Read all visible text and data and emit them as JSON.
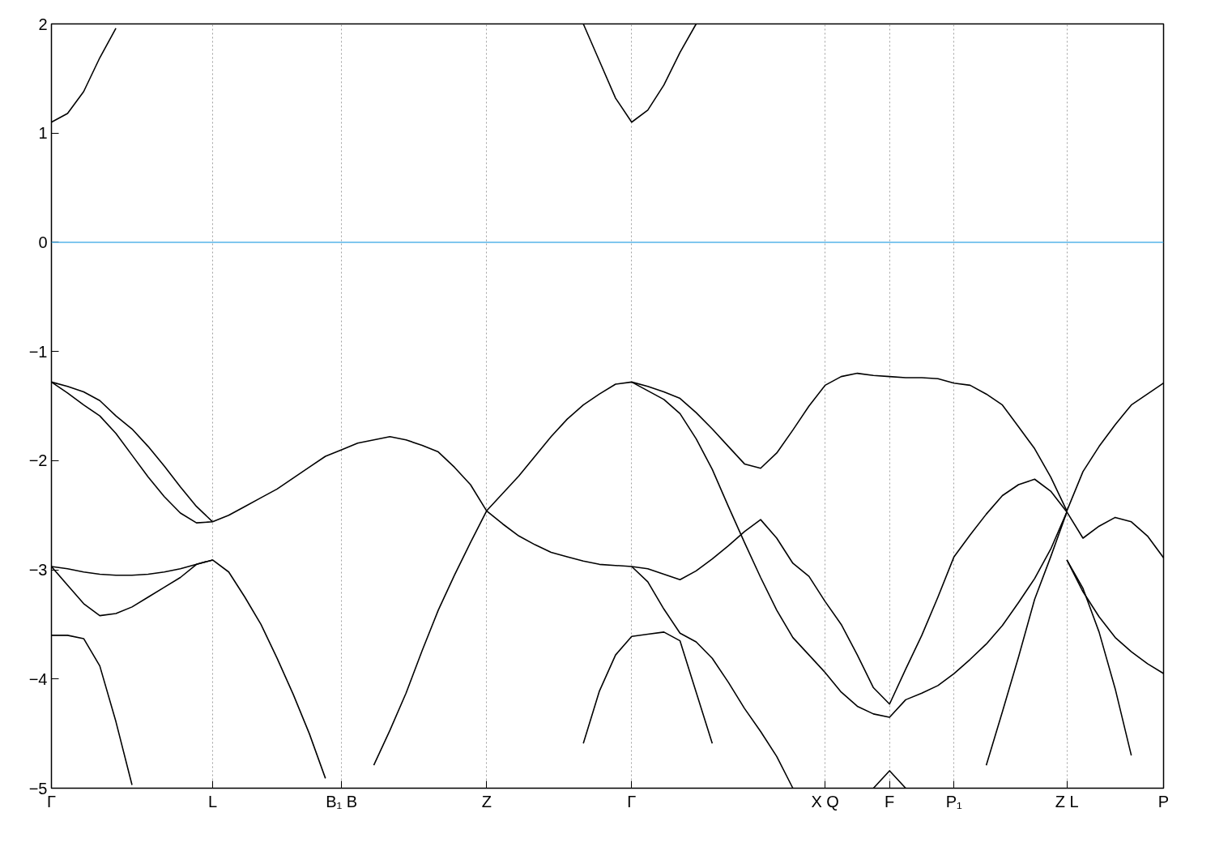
{
  "chart_data": {
    "type": "line",
    "categories": [
      "Γ",
      null,
      null,
      null,
      null,
      null,
      null,
      null,
      null,
      null,
      "L",
      null,
      null,
      null,
      null,
      null,
      null,
      null,
      "B₁ B",
      null,
      null,
      null,
      null,
      null,
      null,
      null,
      null,
      "Z",
      null,
      null,
      null,
      null,
      null,
      null,
      null,
      null,
      "Γ",
      null,
      null,
      null,
      null,
      null,
      null,
      null,
      null,
      null,
      null,
      null,
      "X Q",
      null,
      null,
      null,
      "F",
      null,
      null,
      null,
      "P₁",
      null,
      null,
      null,
      null,
      null,
      null,
      "Z L",
      null,
      null,
      null,
      null,
      null,
      "P"
    ],
    "ylim": [
      -5,
      2
    ],
    "yticks": [
      -5,
      -4,
      -3,
      -2,
      -1,
      0,
      1,
      2
    ],
    "grid": "x",
    "ref_lines": [
      {
        "axis": "y",
        "value": 0,
        "color": "#56b4e9"
      }
    ],
    "series": [
      {
        "color": "#000000",
        "values": [
          1.1,
          1.18,
          1.38,
          1.69,
          1.96,
          null,
          null,
          null,
          null,
          null,
          null,
          null,
          null,
          null,
          null,
          null,
          null,
          null,
          null,
          null,
          null,
          null,
          null,
          null,
          null,
          null,
          null,
          null,
          null,
          null,
          null,
          null,
          null,
          null,
          null,
          null,
          null,
          null,
          null,
          null,
          null,
          null,
          null,
          null,
          null,
          null,
          null,
          null,
          null,
          null,
          null,
          null,
          null,
          null,
          null,
          null,
          null,
          null,
          null,
          null,
          null,
          null,
          null,
          null,
          null,
          null,
          null,
          null,
          null,
          null
        ]
      },
      {
        "color": "#000000",
        "values": [
          null,
          null,
          null,
          null,
          null,
          null,
          null,
          null,
          null,
          null,
          null,
          null,
          null,
          null,
          null,
          null,
          null,
          null,
          null,
          null,
          null,
          null,
          null,
          null,
          null,
          null,
          null,
          null,
          null,
          null,
          null,
          null,
          null,
          2.0,
          1.66,
          1.32,
          1.1,
          1.21,
          1.44,
          1.74,
          2.0,
          null,
          null,
          null,
          null,
          null,
          null,
          null,
          null,
          null,
          null,
          null,
          null,
          null,
          null,
          null,
          null,
          null,
          null,
          null,
          null,
          null,
          null,
          null,
          null,
          null,
          null,
          null,
          null,
          null
        ]
      },
      {
        "color": "#000000",
        "values": [
          -1.28,
          -1.38,
          -1.49,
          -1.59,
          -1.75,
          -1.95,
          -2.15,
          -2.33,
          -2.48,
          -2.57,
          -2.56,
          -2.5,
          -2.42,
          -2.34,
          -2.26,
          -2.16,
          -2.06,
          -1.96,
          -1.9,
          -1.84,
          -1.81,
          -1.78,
          -1.81,
          -1.86,
          -1.92,
          -2.06,
          -2.22,
          -2.46,
          -2.3,
          -2.14,
          -1.96,
          -1.78,
          -1.62,
          -1.49,
          -1.39,
          -1.3,
          -1.28,
          -1.32,
          -1.37,
          -1.43,
          -1.56,
          -1.71,
          -1.87,
          -2.03,
          -2.07,
          -1.93,
          -1.72,
          -1.5,
          -1.31,
          -1.23,
          -1.2,
          -1.22,
          -1.23,
          -1.24,
          -1.24,
          -1.25,
          -1.29,
          -1.31,
          -1.39,
          -1.49,
          -1.69,
          -1.89,
          -2.15,
          -2.46,
          -2.1,
          -1.87,
          -1.67,
          -1.49,
          -1.39,
          -1.29
        ]
      },
      {
        "color": "#000000",
        "values": [
          -1.28,
          -1.32,
          -1.37,
          -1.45,
          -1.59,
          -1.71,
          -1.87,
          -2.05,
          -2.24,
          -2.42,
          -2.56,
          null,
          null,
          null,
          null,
          null,
          null,
          null,
          null,
          null,
          null,
          null,
          null,
          null,
          null,
          null,
          null,
          null,
          null,
          null,
          null,
          null,
          null,
          null,
          null,
          null,
          null,
          null,
          null,
          null,
          null,
          null,
          null,
          null,
          null,
          null,
          null,
          null,
          null,
          null,
          null,
          null,
          null,
          null,
          null,
          null,
          null,
          null,
          null,
          null,
          null,
          null,
          null,
          null,
          null,
          null,
          null,
          null,
          null,
          null
        ]
      },
      {
        "color": "#000000",
        "values": [
          null,
          null,
          null,
          null,
          null,
          null,
          null,
          null,
          null,
          null,
          null,
          null,
          null,
          null,
          null,
          null,
          null,
          null,
          null,
          null,
          null,
          null,
          null,
          null,
          null,
          null,
          null,
          -2.46,
          -2.58,
          -2.69,
          -2.77,
          -2.84,
          -2.88,
          -2.92,
          -2.95,
          -2.96,
          -2.97,
          -2.99,
          -3.04,
          -3.09,
          -3.01,
          -2.9,
          -2.78,
          -2.65,
          -2.54,
          -2.71,
          -2.94,
          -3.06,
          -3.29,
          -3.5,
          -3.78,
          -4.08,
          -4.23,
          -3.91,
          -3.6,
          -3.25,
          -2.88,
          -2.68,
          -2.49,
          -2.32,
          -2.22,
          -2.17,
          -2.28,
          -2.47,
          -2.71,
          -2.6,
          -2.52,
          -2.56,
          -2.69,
          -2.89
        ]
      },
      {
        "color": "#000000",
        "values": [
          null,
          null,
          null,
          null,
          null,
          null,
          null,
          null,
          null,
          null,
          null,
          null,
          null,
          null,
          null,
          null,
          null,
          null,
          null,
          null,
          null,
          null,
          null,
          null,
          null,
          null,
          null,
          null,
          null,
          null,
          null,
          null,
          null,
          null,
          null,
          null,
          -1.28,
          -1.36,
          -1.44,
          -1.57,
          -1.8,
          -2.08,
          -2.42,
          -2.75,
          -3.07,
          -3.37,
          -3.62,
          -3.78,
          -3.94,
          -4.12,
          -4.25,
          -4.32,
          -4.35,
          -4.19,
          -4.13,
          -4.06,
          -3.95,
          -3.82,
          -3.68,
          -3.51,
          -3.3,
          -3.08,
          -2.81,
          -2.47,
          null,
          null,
          null,
          null,
          null,
          null
        ]
      },
      {
        "color": "#000000",
        "values": [
          null,
          null,
          null,
          null,
          null,
          null,
          null,
          null,
          null,
          null,
          null,
          null,
          null,
          null,
          null,
          null,
          null,
          null,
          null,
          null,
          null,
          null,
          null,
          null,
          null,
          null,
          null,
          null,
          null,
          null,
          null,
          null,
          null,
          null,
          null,
          null,
          null,
          null,
          null,
          null,
          null,
          null,
          null,
          null,
          null,
          null,
          null,
          null,
          null,
          null,
          null,
          null,
          null,
          null,
          null,
          null,
          null,
          null,
          null,
          null,
          null,
          null,
          null,
          -2.91,
          -3.2,
          -3.43,
          -3.62,
          -3.75,
          -3.86,
          -3.95
        ]
      },
      {
        "color": "#000000",
        "values": [
          -2.97,
          -2.99,
          -3.02,
          -3.04,
          -3.05,
          -3.05,
          -3.04,
          -3.02,
          -2.99,
          -2.95,
          -2.91,
          -3.02,
          -3.25,
          -3.5,
          -3.81,
          -4.14,
          -4.5,
          -4.91,
          null,
          null,
          null,
          null,
          null,
          null,
          null,
          null,
          null,
          null,
          null,
          null,
          null,
          null,
          null,
          null,
          null,
          null,
          null,
          null,
          null,
          null,
          null,
          null,
          null,
          null,
          null,
          null,
          null,
          null,
          null,
          null,
          null,
          null,
          null,
          null,
          null,
          null,
          null,
          null,
          null,
          null,
          null,
          null,
          null,
          null,
          null,
          null,
          null,
          null,
          null,
          null
        ]
      },
      {
        "color": "#000000",
        "values": [
          -2.97,
          -3.14,
          -3.31,
          -3.42,
          -3.4,
          -3.34,
          -3.25,
          -3.16,
          -3.07,
          -2.95,
          -2.91,
          null,
          null,
          null,
          null,
          null,
          null,
          null,
          null,
          null,
          null,
          null,
          null,
          null,
          null,
          null,
          null,
          null,
          null,
          null,
          null,
          null,
          null,
          null,
          null,
          null,
          null,
          null,
          null,
          null,
          null,
          null,
          null,
          null,
          null,
          null,
          null,
          null,
          null,
          null,
          null,
          null,
          null,
          null,
          null,
          null,
          null,
          null,
          null,
          null,
          null,
          null,
          null,
          null,
          null,
          null,
          null,
          null,
          null,
          null
        ]
      },
      {
        "color": "#000000",
        "values": [
          -3.6,
          -3.6,
          -3.63,
          -3.88,
          -4.39,
          -4.97,
          null,
          null,
          null,
          null,
          null,
          null,
          null,
          null,
          null,
          null,
          null,
          null,
          null,
          null,
          null,
          null,
          null,
          null,
          null,
          null,
          null,
          null,
          null,
          null,
          null,
          null,
          null,
          null,
          null,
          null,
          null,
          null,
          null,
          null,
          null,
          null,
          null,
          null,
          null,
          null,
          null,
          null,
          null,
          null,
          null,
          null,
          null,
          null,
          null,
          null,
          null,
          null,
          null,
          null,
          null,
          null,
          null,
          null,
          null,
          null,
          null,
          null,
          null,
          null
        ]
      },
      {
        "color": "#000000",
        "values": [
          null,
          null,
          null,
          null,
          null,
          null,
          null,
          null,
          null,
          null,
          null,
          null,
          null,
          null,
          null,
          null,
          null,
          null,
          null,
          null,
          -4.79,
          -4.47,
          -4.13,
          -3.74,
          -3.37,
          -3.05,
          -2.75,
          -2.46,
          null,
          null,
          null,
          null,
          null,
          null,
          null,
          null,
          null,
          null,
          null,
          null,
          null,
          null,
          null,
          null,
          null,
          null,
          null,
          null,
          null,
          null,
          null,
          null,
          null,
          null,
          null,
          null,
          null,
          null,
          null,
          null,
          null,
          null,
          null,
          null,
          null,
          null,
          null,
          null,
          null,
          null
        ]
      },
      {
        "color": "#000000",
        "values": [
          null,
          null,
          null,
          null,
          null,
          null,
          null,
          null,
          null,
          null,
          null,
          null,
          null,
          null,
          null,
          null,
          null,
          null,
          null,
          null,
          null,
          null,
          null,
          null,
          null,
          null,
          null,
          null,
          null,
          null,
          null,
          null,
          null,
          null,
          null,
          null,
          -2.97,
          -3.11,
          -3.36,
          -3.58,
          -3.66,
          -3.81,
          -4.03,
          -4.27,
          -4.48,
          -4.71,
          -5.0,
          null,
          null,
          null,
          null,
          null,
          null,
          null,
          null,
          null,
          null,
          null,
          null,
          null,
          null,
          null,
          null,
          null,
          null,
          null,
          null,
          null,
          null,
          null
        ]
      },
      {
        "color": "#000000",
        "values": [
          null,
          null,
          null,
          null,
          null,
          null,
          null,
          null,
          null,
          null,
          null,
          null,
          null,
          null,
          null,
          null,
          null,
          null,
          null,
          null,
          null,
          null,
          null,
          null,
          null,
          null,
          null,
          null,
          null,
          null,
          null,
          null,
          null,
          -4.59,
          -4.11,
          -3.78,
          -3.61,
          -3.59,
          -3.57,
          -3.65,
          -4.12,
          -4.59,
          null,
          null,
          null,
          null,
          null,
          null,
          null,
          null,
          null,
          null,
          null,
          null,
          null,
          null,
          null,
          null,
          null,
          null,
          null,
          null,
          null,
          null,
          null,
          null,
          null,
          null,
          null,
          null
        ]
      },
      {
        "color": "#000000",
        "values": [
          null,
          null,
          null,
          null,
          null,
          null,
          null,
          null,
          null,
          null,
          null,
          null,
          null,
          null,
          null,
          null,
          null,
          null,
          null,
          null,
          null,
          null,
          null,
          null,
          null,
          null,
          null,
          null,
          null,
          null,
          null,
          null,
          null,
          null,
          null,
          null,
          null,
          null,
          null,
          null,
          null,
          null,
          null,
          null,
          null,
          null,
          null,
          null,
          null,
          null,
          null,
          -5.0,
          -4.84,
          -5.0,
          null,
          null,
          null,
          null,
          null,
          null,
          null,
          null,
          null,
          null,
          null,
          null,
          null,
          null,
          null,
          null
        ]
      },
      {
        "color": "#000000",
        "values": [
          null,
          null,
          null,
          null,
          null,
          null,
          null,
          null,
          null,
          null,
          null,
          null,
          null,
          null,
          null,
          null,
          null,
          null,
          null,
          null,
          null,
          null,
          null,
          null,
          null,
          null,
          null,
          null,
          null,
          null,
          null,
          null,
          null,
          null,
          null,
          null,
          null,
          null,
          null,
          null,
          null,
          null,
          null,
          null,
          null,
          null,
          null,
          null,
          null,
          null,
          null,
          null,
          null,
          null,
          null,
          null,
          null,
          null,
          -4.79,
          -4.3,
          -3.8,
          -3.27,
          -2.88,
          -2.47,
          null,
          null,
          null,
          null,
          null,
          null
        ]
      },
      {
        "color": "#000000",
        "values": [
          null,
          null,
          null,
          null,
          null,
          null,
          null,
          null,
          null,
          null,
          null,
          null,
          null,
          null,
          null,
          null,
          null,
          null,
          null,
          null,
          null,
          null,
          null,
          null,
          null,
          null,
          null,
          null,
          null,
          null,
          null,
          null,
          null,
          null,
          null,
          null,
          null,
          null,
          null,
          null,
          null,
          null,
          null,
          null,
          null,
          null,
          null,
          null,
          null,
          null,
          null,
          null,
          null,
          null,
          null,
          null,
          null,
          null,
          null,
          null,
          null,
          null,
          null,
          -2.91,
          -3.17,
          -3.57,
          -4.09,
          -4.7,
          null,
          null
        ]
      }
    ]
  }
}
